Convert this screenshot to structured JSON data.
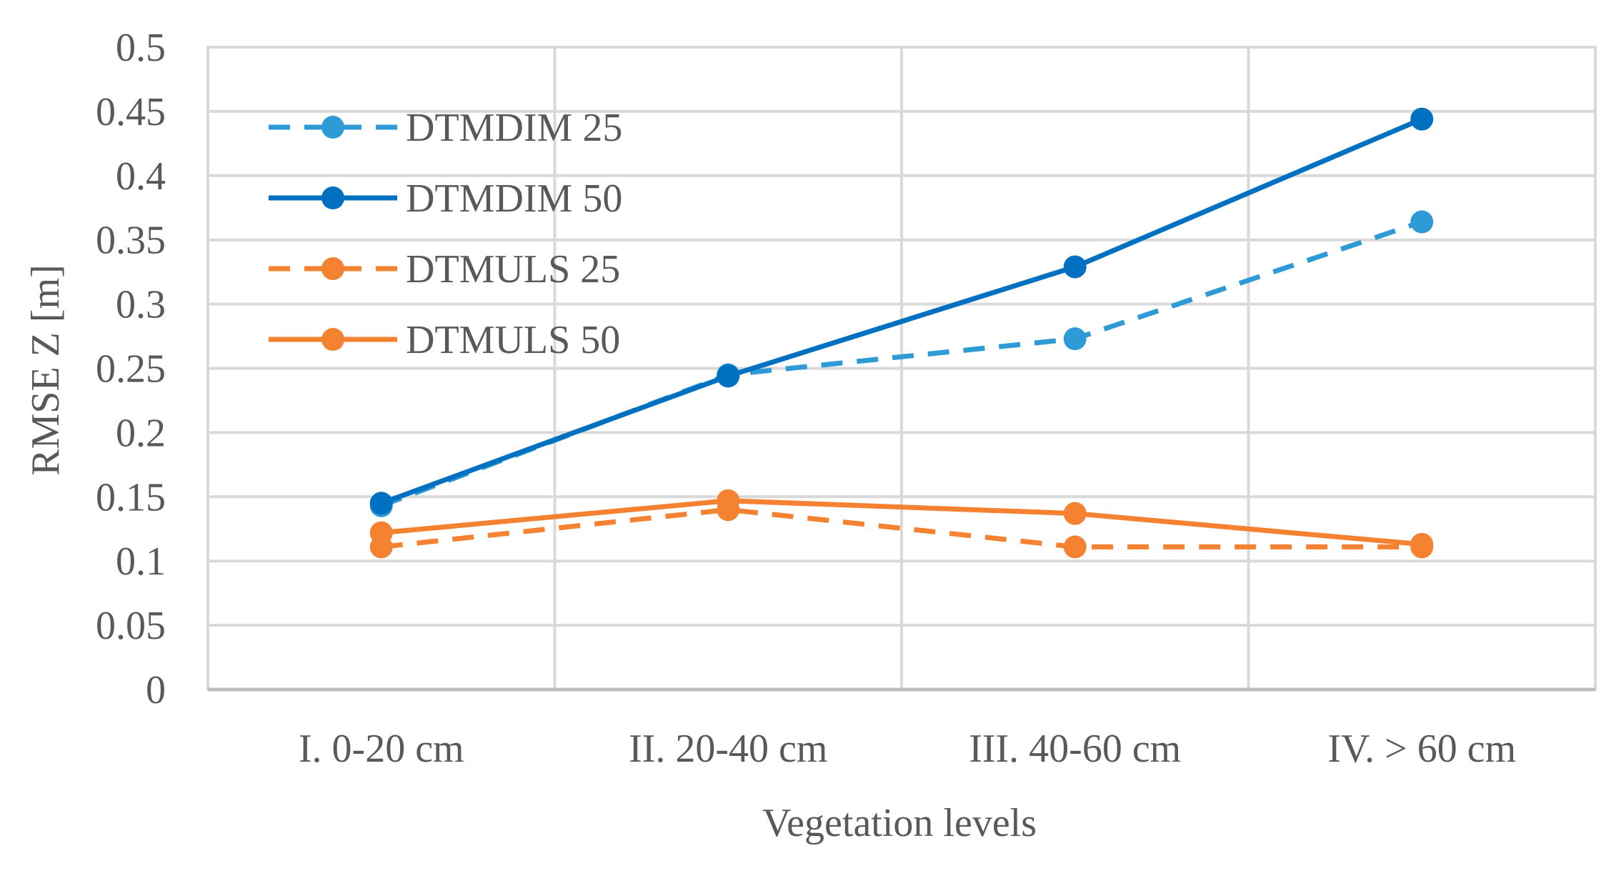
{
  "chart_data": {
    "type": "line",
    "title": "",
    "xlabel": "Vegetation levels",
    "ylabel": "RMSE Z [m]",
    "ylim": [
      0,
      0.5
    ],
    "yticks": [
      "0",
      "0.05",
      "0.1",
      "0.15",
      "0.2",
      "0.25",
      "0.3",
      "0.35",
      "0.4",
      "0.45",
      "0.5"
    ],
    "grid": true,
    "legend_position": "top-left",
    "categories": [
      "I. 0-20 cm",
      "II. 20-40 cm",
      "III. 40-60 cm",
      "IV. > 60 cm"
    ],
    "series": [
      {
        "name": "DTMDIM 25",
        "values": [
          0.143,
          0.245,
          0.273,
          0.364
        ],
        "color": "#2e9bd6",
        "dash": "dashed"
      },
      {
        "name": "DTMDIM 50",
        "values": [
          0.145,
          0.244,
          0.329,
          0.444
        ],
        "color": "#0070c0",
        "dash": "solid"
      },
      {
        "name": "DTMULS 25",
        "values": [
          0.111,
          0.14,
          0.111,
          0.111
        ],
        "color": "#f58231",
        "dash": "dashed"
      },
      {
        "name": "DTMULS 50",
        "values": [
          0.122,
          0.147,
          0.137,
          0.113
        ],
        "color": "#f58231",
        "dash": "solid"
      }
    ]
  }
}
